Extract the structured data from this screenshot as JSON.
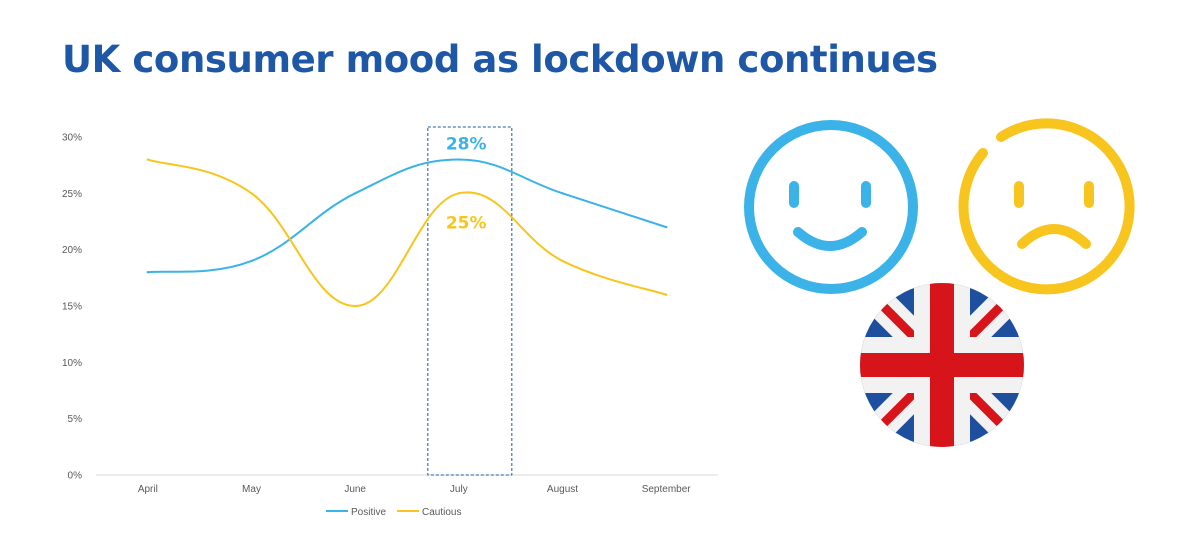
{
  "title": "UK consumer mood as lockdown continues",
  "colors": {
    "title": "#1e57a6",
    "positive": "#3bb3e8",
    "cautious": "#f7c51e",
    "axis": "#d9d9d9",
    "tick_text": "#595959"
  },
  "chart_data": {
    "type": "line",
    "categories": [
      "April",
      "May",
      "June",
      "July",
      "August",
      "September"
    ],
    "series": [
      {
        "name": "Positive",
        "values": [
          0.18,
          0.19,
          0.25,
          0.28,
          0.25,
          0.22
        ],
        "color": "#3bb3e8"
      },
      {
        "name": "Cautious",
        "values": [
          0.28,
          0.25,
          0.15,
          0.25,
          0.19,
          0.16
        ],
        "color": "#f7c51e"
      }
    ],
    "ylim": [
      0,
      0.3
    ],
    "yticks": [
      "0%",
      "5%",
      "10%",
      "15%",
      "20%",
      "25%",
      "30%"
    ],
    "grid": false,
    "legend": "bottom",
    "highlight": {
      "category": "July",
      "labels": [
        {
          "text": "28%",
          "series": "Positive",
          "color": "#3bb3e8"
        },
        {
          "text": "25%",
          "series": "Cautious",
          "color": "#f7c51e"
        }
      ]
    }
  },
  "icons": [
    "happy-face-icon",
    "sad-face-icon",
    "union-jack-flag-icon"
  ]
}
